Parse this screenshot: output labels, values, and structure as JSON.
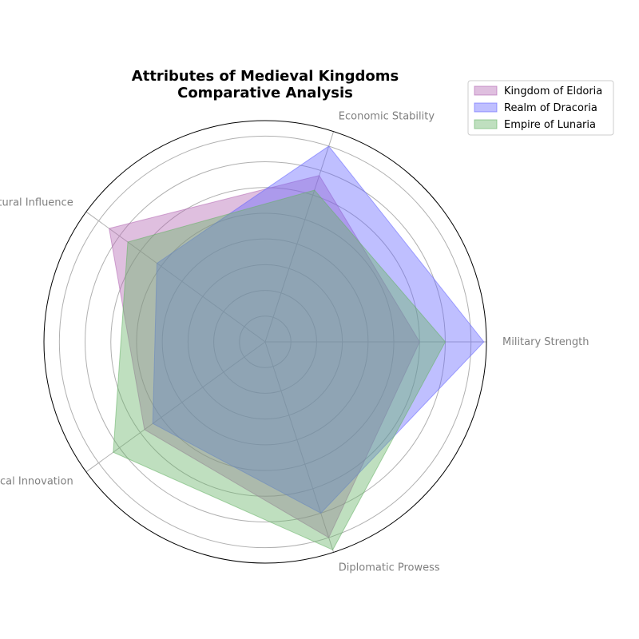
{
  "chart_data": {
    "type": "radar",
    "title": "Attributes of Medieval Kingdoms\nComparative Analysis",
    "axes": [
      "Military Strength",
      "Economic Stability",
      "Cultural Influence",
      "Technological Innovation",
      "Diplomatic Prowess"
    ],
    "rlim": [
      0,
      8.6
    ],
    "grid": true,
    "legend_position": "top-right",
    "series": [
      {
        "name": "Kingdom of Eldoria",
        "color": "#b266b2",
        "values": [
          6,
          6.8,
          7.5,
          5.8,
          8
        ]
      },
      {
        "name": "Realm of Dracoria",
        "color": "#6666ff",
        "values": [
          8.5,
          8,
          5.2,
          5.4,
          7
        ]
      },
      {
        "name": "Empire of Lunaria",
        "color": "#66b266",
        "values": [
          7,
          6.2,
          6.6,
          7.3,
          8.5
        ]
      }
    ]
  }
}
